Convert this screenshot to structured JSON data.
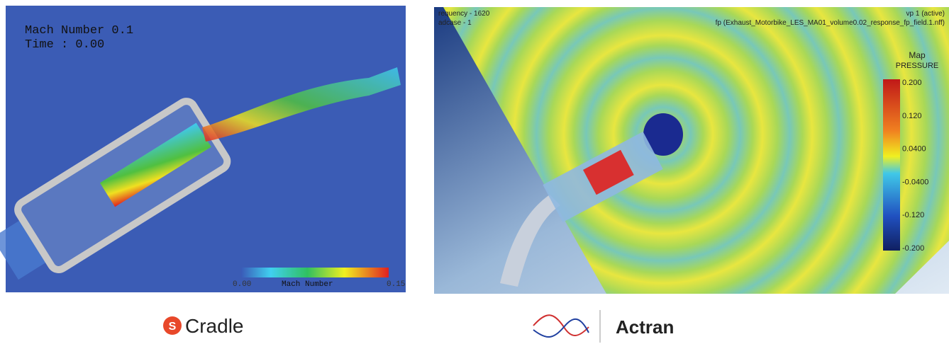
{
  "left_panel": {
    "overlay": {
      "line1": "Mach Number 0.1",
      "line2": "Time : 0.00"
    },
    "colorbar": {
      "min_label": "0.00",
      "title": "Mach Number",
      "max_label": "0.15"
    },
    "logo": "Cradle"
  },
  "right_panel": {
    "overlay": {
      "top_left_1": "requency - 1620",
      "top_left_2": "adcase - 1",
      "top_right_1": "vp 1 (active)",
      "top_right_2": "fp (Exhaust_Motorbike_LES_MA01_volume0.02_response_fp_field.1.nff)"
    },
    "colorbar": {
      "title_1": "Map",
      "title_2": "PRESSURE",
      "ticks": [
        "0.200",
        "0.120",
        "0.0400",
        "-0.0400",
        "-0.120",
        "-0.200"
      ]
    },
    "logo": "Actran"
  }
}
